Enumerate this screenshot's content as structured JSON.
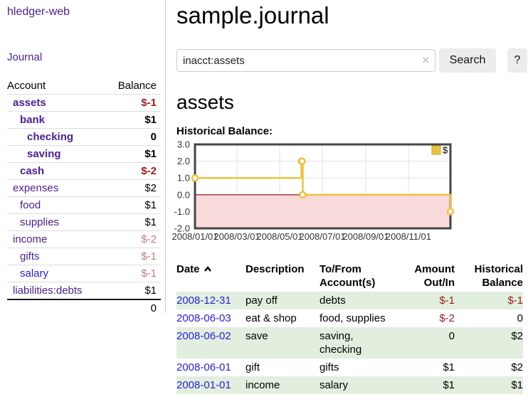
{
  "colors": {
    "link_purple": "#4b2191",
    "link_blue": "#2722d8",
    "negative_strong": "#9e1a1a",
    "negative_muted": "#c07d7a",
    "row_stripe_green": "#e2efdf",
    "button_bg": "#ececec",
    "chart_line_gold": "#EDC240",
    "chart_negative_fill": "#f9d9d9",
    "chart_zero_line": "#8b0000",
    "chart_border": "#454545",
    "chart_grid": "#e3e3e3"
  },
  "sidebar": {
    "app_title": "hledger-web",
    "journal_link": "Journal",
    "accounts": {
      "col_account": "Account",
      "col_balance": "Balance",
      "rows": [
        {
          "account": "assets",
          "balance": "$-1",
          "depth": 0,
          "bold": true,
          "neg": "strong",
          "blue": false
        },
        {
          "account": "bank",
          "balance": "$1",
          "depth": 1,
          "bold": true,
          "neg": null,
          "blue": false
        },
        {
          "account": "checking",
          "balance": "0",
          "depth": 2,
          "bold": true,
          "neg": null,
          "blue": false
        },
        {
          "account": "saving",
          "balance": "$1",
          "depth": 2,
          "bold": true,
          "neg": null,
          "blue": false
        },
        {
          "account": "cash",
          "balance": "$-2",
          "depth": 1,
          "bold": true,
          "neg": "strong",
          "blue": false
        },
        {
          "account": "expenses",
          "balance": "$2",
          "depth": 0,
          "bold": false,
          "neg": null,
          "blue": false
        },
        {
          "account": "food",
          "balance": "$1",
          "depth": 1,
          "bold": false,
          "neg": null,
          "blue": false
        },
        {
          "account": "supplies",
          "balance": "$1",
          "depth": 1,
          "bold": false,
          "neg": null,
          "blue": false
        },
        {
          "account": "income",
          "balance": "$-2",
          "depth": 0,
          "bold": false,
          "neg": "muted",
          "blue": false
        },
        {
          "account": "gifts",
          "balance": "$-1",
          "depth": 1,
          "bold": false,
          "neg": "muted",
          "blue": false
        },
        {
          "account": "salary",
          "balance": "$-1",
          "depth": 1,
          "bold": false,
          "neg": "muted",
          "blue": true
        },
        {
          "account": "liabilities:debts",
          "balance": "$1",
          "depth": 0,
          "bold": false,
          "neg": null,
          "blue": false
        }
      ],
      "total": "0"
    }
  },
  "main": {
    "title": "sample.journal",
    "search": {
      "value": "inacct:assets",
      "clear_icon": "×",
      "search_label": "Search",
      "help_label": "?"
    },
    "account_heading": "assets",
    "section_label": "Historical Balance:"
  },
  "chart_data": {
    "type": "line",
    "step": true,
    "title": "Historical Balance",
    "x_start": "2008-01-01",
    "x_end": "2008-12-31",
    "ylim": [
      -2,
      3
    ],
    "yticks": [
      "3.0",
      "2.0",
      "1.0",
      "0.0",
      "-1.0",
      "-2.0"
    ],
    "xticks": [
      {
        "date": "2008-01-01",
        "label": "2008/01/01"
      },
      {
        "date": "2008-03-01",
        "label": "2008/03/01"
      },
      {
        "date": "2008-05-01",
        "label": "2008/05/01"
      },
      {
        "date": "2008-07-01",
        "label": "2008/07/01"
      },
      {
        "date": "2008-09-01",
        "label": "2008/09/01"
      },
      {
        "date": "2008-11-01",
        "label": "2008/11/01"
      }
    ],
    "series": [
      {
        "name": "$",
        "color": "#EDC240",
        "points": [
          [
            "2008-01-01",
            1
          ],
          [
            "2008-06-01",
            2
          ],
          [
            "2008-06-02",
            2
          ],
          [
            "2008-06-03",
            0
          ],
          [
            "2008-12-31",
            -1
          ]
        ]
      }
    ],
    "legend": {
      "label": "$",
      "position": "top-right"
    },
    "grid": true
  },
  "register": {
    "headers": {
      "date": "Date",
      "description": "Description",
      "accounts": "To/From Account(s)",
      "amount": "Amount Out/In",
      "balance": "Historical Balance"
    },
    "rows": [
      {
        "date": "2008-12-31",
        "description": "pay off",
        "accounts": "debts",
        "amount": "$-1",
        "balance": "$-1",
        "amount_neg": true,
        "balance_neg": true,
        "shaded": true
      },
      {
        "date": "2008-06-03",
        "description": "eat & shop",
        "accounts": "food, supplies",
        "amount": "$-2",
        "balance": "0",
        "amount_neg": true,
        "balance_neg": false,
        "shaded": false
      },
      {
        "date": "2008-06-02",
        "description": "save",
        "accounts": "saving, checking",
        "amount": "0",
        "balance": "$2",
        "amount_neg": false,
        "balance_neg": false,
        "shaded": true
      },
      {
        "date": "2008-06-01",
        "description": "gift",
        "accounts": "gifts",
        "amount": "$1",
        "balance": "$2",
        "amount_neg": false,
        "balance_neg": false,
        "shaded": false
      },
      {
        "date": "2008-01-01",
        "description": "income",
        "accounts": "salary",
        "amount": "$1",
        "balance": "$1",
        "amount_neg": false,
        "balance_neg": false,
        "shaded": true
      }
    ]
  }
}
